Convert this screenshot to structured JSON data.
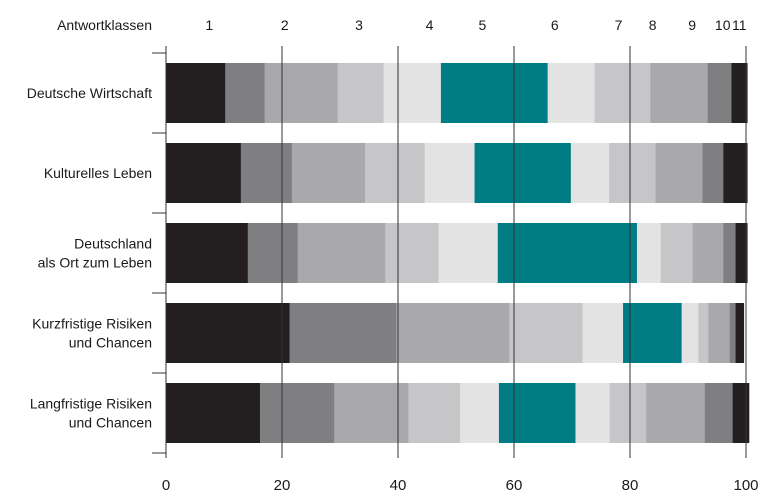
{
  "chart_data": {
    "type": "bar",
    "stacked": true,
    "orientation": "horizontal",
    "legend_title": "Antwortklassen",
    "class_labels": [
      "1",
      "2",
      "3",
      "4",
      "5",
      "6",
      "7",
      "8",
      "9",
      "10",
      "11"
    ],
    "class_colors": [
      "#231f20",
      "#7f7f82",
      "#a9a9ac",
      "#c6c6c8",
      "#e3e3e4",
      "#007c84",
      "#e3e3e4",
      "#c6c6c8",
      "#a9a9ac",
      "#7f7f82",
      "#231f20"
    ],
    "categories": [
      [
        "Deutsche Wirtschaft"
      ],
      [
        "Kulturelles Leben"
      ],
      [
        "Deutschland",
        "als Ort zum Leben"
      ],
      [
        "Kurzfristige Risiken",
        "und Chancen"
      ],
      [
        "Langfristige Risiken",
        "und Chancen"
      ]
    ],
    "values": [
      [
        10.2,
        6.8,
        12.6,
        7.9,
        9.9,
        18.4,
        8.1,
        9.6,
        9.9,
        4.1,
        2.7
      ],
      [
        12.9,
        8.8,
        12.6,
        10.3,
        8.6,
        16.6,
        6.6,
        8.0,
        8.1,
        3.6,
        4.1
      ],
      [
        14.1,
        8.6,
        15.1,
        9.2,
        10.2,
        24.0,
        4.1,
        5.5,
        5.3,
        2.1,
        2.0
      ],
      [
        21.3,
        18.4,
        19.5,
        12.6,
        7.0,
        10.1,
        2.9,
        1.7,
        3.7,
        1.0,
        1.4
      ],
      [
        16.2,
        12.8,
        12.8,
        8.9,
        6.7,
        13.2,
        5.9,
        6.3,
        10.1,
        4.8,
        2.8
      ]
    ],
    "xlim": [
      0,
      100
    ],
    "xticks": [
      0,
      20,
      40,
      60,
      80,
      100
    ],
    "grid": false
  }
}
